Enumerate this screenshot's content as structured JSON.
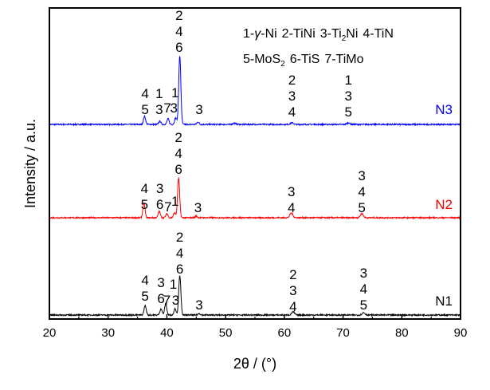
{
  "chart_data": {
    "type": "line",
    "title": "",
    "xlabel": "2θ / (°)",
    "ylabel": "Intensity / a.u.",
    "xlim": [
      20,
      90
    ],
    "ylim": [
      0,
      390
    ],
    "xticks": [
      20,
      30,
      40,
      50,
      60,
      70,
      80,
      90
    ],
    "yticks": [],
    "grid": false,
    "legend": {
      "placement": "top-right",
      "rows": [
        [
          {
            "num": "1-",
            "name": "γ",
            "rest": "-Ni",
            "sub": ""
          },
          {
            "num": "2-",
            "name": "",
            "rest": "TiNi",
            "sub": ""
          },
          {
            "num": "3-",
            "name": "",
            "rest": "Ti",
            "sub": "2",
            "after": "Ni"
          },
          {
            "num": "4-",
            "name": "",
            "rest": "TiN",
            "sub": ""
          }
        ],
        [
          {
            "num": "5-",
            "name": "",
            "rest": "MoS",
            "sub": "2",
            "after": ""
          },
          {
            "num": "6-",
            "name": "",
            "rest": "TiS",
            "sub": ""
          },
          {
            "num": "7-",
            "name": "",
            "rest": "TiMo",
            "sub": ""
          }
        ]
      ]
    },
    "series": [
      {
        "name": "N3",
        "color": "#0000ff",
        "offset": 244,
        "peaks": [
          [
            36.2,
            10
          ],
          [
            38.8,
            4
          ],
          [
            40.2,
            7
          ],
          [
            41.5,
            8
          ],
          [
            42.2,
            86
          ],
          [
            45.3,
            3
          ],
          [
            51.5,
            1.5
          ],
          [
            61.3,
            2
          ],
          [
            70.9,
            2
          ]
        ],
        "annotations": [
          {
            "x": 42.1,
            "y": 335,
            "lines": [
              "2",
              "4",
              "6"
            ]
          },
          {
            "x": 36.3,
            "y": 257,
            "lines": [
              "4",
              "5"
            ]
          },
          {
            "x": 38.7,
            "y": 257,
            "lines": [
              "1",
              "3"
            ]
          },
          {
            "x": 40.1,
            "y": 259,
            "lines": [
              "7"
            ]
          },
          {
            "x": 41.4,
            "y": 278,
            "lines": [
              "1"
            ]
          },
          {
            "x": 41.2,
            "y": 259,
            "lines": [
              "3"
            ]
          },
          {
            "x": 45.5,
            "y": 257,
            "lines": [
              "3"
            ]
          },
          {
            "x": 61.3,
            "y": 254,
            "lines": [
              "2",
              "3",
              "4"
            ]
          },
          {
            "x": 70.9,
            "y": 254,
            "lines": [
              "1",
              "3",
              "5"
            ]
          }
        ]
      },
      {
        "name": "N2",
        "color": "#ff0000",
        "offset": 127,
        "peaks": [
          [
            36.1,
            18
          ],
          [
            38.7,
            8
          ],
          [
            40.0,
            5
          ],
          [
            41.3,
            6
          ],
          [
            42.0,
            50
          ],
          [
            45.0,
            2
          ],
          [
            61.2,
            6
          ],
          [
            73.2,
            5
          ]
        ],
        "annotations": [
          {
            "x": 42.0,
            "y": 182,
            "lines": [
              "2",
              "4",
              "6"
            ]
          },
          {
            "x": 36.2,
            "y": 138,
            "lines": [
              "4",
              "5"
            ]
          },
          {
            "x": 38.8,
            "y": 138,
            "lines": [
              "3",
              "6"
            ]
          },
          {
            "x": 40.2,
            "y": 135,
            "lines": [
              "7"
            ]
          },
          {
            "x": 41.4,
            "y": 142,
            "lines": [
              "1"
            ]
          },
          {
            "x": 45.3,
            "y": 134,
            "lines": [
              "3"
            ]
          },
          {
            "x": 61.2,
            "y": 134,
            "lines": [
              "3",
              "4"
            ]
          },
          {
            "x": 73.2,
            "y": 134,
            "lines": [
              "3",
              "4",
              "5"
            ]
          }
        ]
      },
      {
        "name": "N1",
        "color": "#000000",
        "offset": 5,
        "peaks": [
          [
            36.3,
            12
          ],
          [
            39.0,
            8
          ],
          [
            39.8,
            14
          ],
          [
            41.4,
            8
          ],
          [
            42.2,
            50
          ],
          [
            45.5,
            2
          ],
          [
            61.5,
            4
          ],
          [
            73.5,
            3
          ]
        ],
        "annotations": [
          {
            "x": 42.2,
            "y": 57,
            "lines": [
              "2",
              "4",
              "6"
            ]
          },
          {
            "x": 36.3,
            "y": 23,
            "lines": [
              "4",
              "5"
            ]
          },
          {
            "x": 39.0,
            "y": 20,
            "lines": [
              "3",
              "6"
            ]
          },
          {
            "x": 40.0,
            "y": 18,
            "lines": [
              "7"
            ]
          },
          {
            "x": 41.1,
            "y": 38,
            "lines": [
              "1"
            ]
          },
          {
            "x": 41.5,
            "y": 18,
            "lines": [
              "3"
            ]
          },
          {
            "x": 45.5,
            "y": 12,
            "lines": [
              "3"
            ]
          },
          {
            "x": 61.5,
            "y": 10,
            "lines": [
              "2",
              "3",
              "4"
            ]
          },
          {
            "x": 73.5,
            "y": 12,
            "lines": [
              "3",
              "4",
              "5"
            ]
          }
        ]
      }
    ]
  }
}
